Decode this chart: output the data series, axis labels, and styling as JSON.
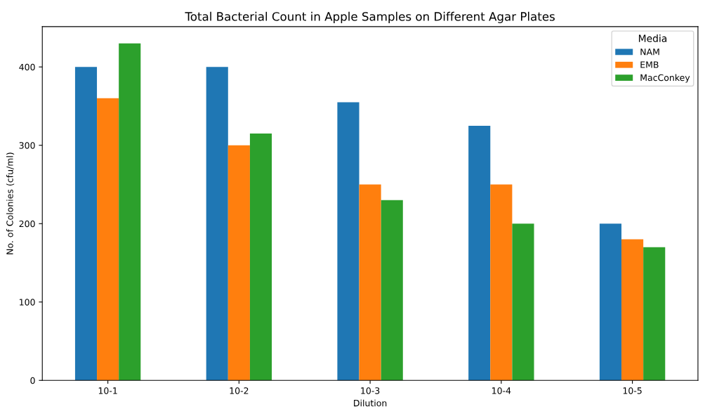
{
  "chart_data": {
    "type": "bar",
    "title": "Total Bacterial Count in Apple Samples on Different Agar Plates",
    "xlabel": "Dilution",
    "ylabel": "No. of Colonies (cfu/ml)",
    "legend_title": "Media",
    "categories": [
      "10-1",
      "10-2",
      "10-3",
      "10-4",
      "10-5"
    ],
    "series": [
      {
        "name": "NAM",
        "color": "#1f77b4",
        "values": [
          400,
          400,
          355,
          325,
          200
        ]
      },
      {
        "name": "EMB",
        "color": "#ff7f0e",
        "values": [
          360,
          300,
          250,
          250,
          180
        ]
      },
      {
        "name": "MacConkey",
        "color": "#2ca02c",
        "values": [
          430,
          315,
          230,
          200,
          170
        ]
      }
    ],
    "ylim": [
      0,
      451.5
    ],
    "yticks": [
      0,
      100,
      200,
      300,
      400
    ],
    "grid": false,
    "legend": "top right"
  }
}
